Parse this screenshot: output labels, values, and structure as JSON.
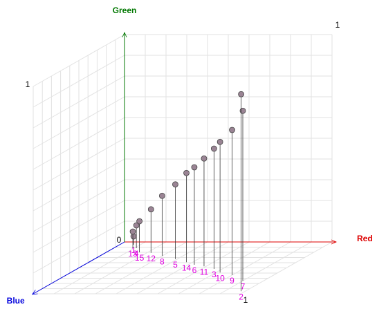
{
  "chart_data": {
    "type": "scatter3d",
    "x_label": "Red",
    "y_label": "Green",
    "z_label": "Blue",
    "x_color": "#dd0000",
    "y_color": "#007700",
    "z_color": "#0000dd",
    "xlim": [
      0,
      1
    ],
    "ylim": [
      0,
      1
    ],
    "zlim": [
      0,
      1
    ],
    "xticks": [
      1
    ],
    "yticks": [
      0,
      1
    ],
    "zticks": [
      1
    ],
    "grid": true,
    "point_color": "#9a8494",
    "label_color": "#e000e0",
    "points": {
      "labels": [
        "1",
        "13",
        "4",
        "15",
        "12",
        "8",
        "5",
        "14",
        "6",
        "11",
        "3",
        "10",
        "9",
        "7",
        "2"
      ],
      "x": [
        0.067,
        0.093,
        0.11,
        0.16,
        0.22,
        0.3,
        0.39,
        0.47,
        0.53,
        0.59,
        0.66,
        0.72,
        0.8,
        0.9,
        0.98
      ],
      "y": [
        0.04,
        0.08,
        0.11,
        0.15,
        0.21,
        0.29,
        0.36,
        0.43,
        0.47,
        0.52,
        0.58,
        0.63,
        0.7,
        0.82,
        0.95
      ],
      "z": [
        0.053,
        0.12,
        0.12,
        0.2,
        0.21,
        0.27,
        0.33,
        0.39,
        0.44,
        0.47,
        0.52,
        0.59,
        0.64,
        0.75,
        0.95
      ]
    }
  }
}
